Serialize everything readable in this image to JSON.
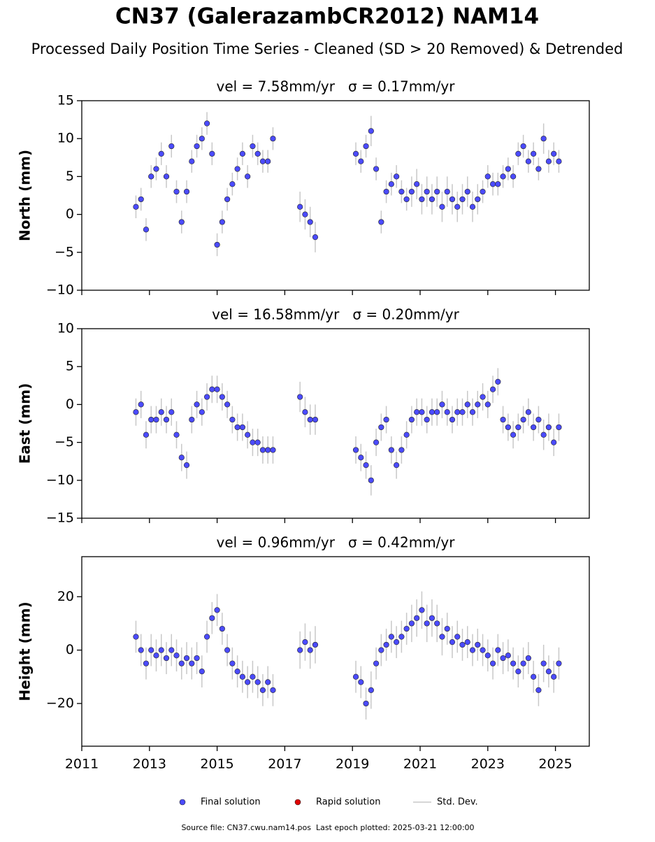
{
  "title": "CN37 (GalerazambCR2012) NAM14",
  "subtitle": "Processed Daily Position Time Series - Cleaned (SD > 20 Removed) & Detrended",
  "legend": [
    {
      "name": "Final solution",
      "color": "#4b4bff"
    },
    {
      "name": "Rapid solution",
      "color": "#e00000"
    },
    {
      "name": "Std. Dev.",
      "color": "#c8c8c8"
    }
  ],
  "footer": "Source file: CN37.cwu.nam14.pos  Last epoch plotted: 2025-03-21 12:00:00",
  "chart_data": [
    {
      "type": "scatter",
      "title": "vel = 7.58mm/yr   σ = 0.17mm/yr",
      "ylabel": "North (mm)",
      "xlim": [
        2011,
        2026
      ],
      "xticks": [
        2011,
        2013,
        2015,
        2017,
        2019,
        2021,
        2023,
        2025
      ],
      "xtick_labels": false,
      "ylim": [
        -10,
        15
      ],
      "yticks": [
        {
          "value": -10,
          "label": "−10"
        },
        {
          "value": -5,
          "label": "−5"
        },
        0,
        5,
        10,
        15
      ],
      "x": [
        2012.6,
        2012.75,
        2012.9,
        2013.05,
        2013.2,
        2013.35,
        2013.5,
        2013.65,
        2013.8,
        2013.95,
        2014.1,
        2014.25,
        2014.4,
        2014.55,
        2014.7,
        2014.85,
        2015.0,
        2015.15,
        2015.3,
        2015.45,
        2015.6,
        2015.75,
        2015.9,
        2016.05,
        2016.2,
        2016.35,
        2016.5,
        2016.65,
        2017.45,
        2017.6,
        2017.75,
        2017.9,
        2019.1,
        2019.25,
        2019.4,
        2019.55,
        2019.7,
        2019.85,
        2020.0,
        2020.15,
        2020.3,
        2020.45,
        2020.6,
        2020.75,
        2020.9,
        2021.05,
        2021.2,
        2021.35,
        2021.5,
        2021.65,
        2021.8,
        2021.95,
        2022.1,
        2022.25,
        2022.4,
        2022.55,
        2022.7,
        2022.85,
        2023.0,
        2023.15,
        2023.3,
        2023.45,
        2023.6,
        2023.75,
        2023.9,
        2024.05,
        2024.2,
        2024.35,
        2024.5,
        2024.65,
        2024.8,
        2024.95,
        2025.1
      ],
      "series": [
        {
          "name": "Final solution",
          "color": "#4b4bff",
          "values": [
            1,
            2,
            -2,
            5,
            6,
            8,
            5,
            9,
            3,
            -1,
            3,
            7,
            9,
            10,
            12,
            8,
            -4,
            -1,
            2,
            4,
            6,
            8,
            5,
            9,
            8,
            7,
            7,
            10,
            1,
            0,
            -1,
            -3,
            8,
            7,
            9,
            11,
            6,
            -1,
            3,
            4,
            5,
            3,
            2,
            3,
            4,
            2,
            3,
            2,
            3,
            1,
            3,
            2,
            1,
            2,
            3,
            1,
            2,
            3,
            5,
            4,
            4,
            5,
            6,
            5,
            8,
            9,
            7,
            8,
            6,
            10,
            7,
            8,
            7
          ],
          "errors": [
            1.5,
            1.5,
            1.5,
            1.5,
            1.5,
            1.5,
            1.5,
            1.5,
            1.5,
            1.5,
            1.5,
            1.5,
            1.5,
            1.5,
            1.5,
            1.5,
            1.5,
            1.5,
            1.5,
            1.5,
            1.5,
            1.5,
            1.5,
            1.5,
            1.5,
            1.5,
            1.5,
            1.5,
            2,
            2,
            2,
            2,
            1.5,
            1.5,
            1.5,
            2,
            1.5,
            1.5,
            1.5,
            1.5,
            1.5,
            1.5,
            1.5,
            2,
            2,
            2,
            2,
            2,
            2,
            2,
            2,
            2,
            2,
            2,
            2,
            2,
            2,
            1.5,
            1.5,
            1.5,
            1.5,
            1.5,
            1.5,
            1.5,
            1.5,
            1.5,
            1.5,
            1.5,
            1.5,
            2,
            1.5,
            1.5,
            1.5
          ]
        }
      ]
    },
    {
      "type": "scatter",
      "title": "vel = 16.58mm/yr   σ = 0.20mm/yr",
      "ylabel": "East (mm)",
      "xlim": [
        2011,
        2026
      ],
      "xticks": [
        2011,
        2013,
        2015,
        2017,
        2019,
        2021,
        2023,
        2025
      ],
      "xtick_labels": false,
      "ylim": [
        -15,
        10
      ],
      "yticks": [
        {
          "value": -15,
          "label": "−15"
        },
        {
          "value": -10,
          "label": "−10"
        },
        {
          "value": -5,
          "label": "−5"
        },
        0,
        5,
        10
      ],
      "x": [
        2012.6,
        2012.75,
        2012.9,
        2013.05,
        2013.2,
        2013.35,
        2013.5,
        2013.65,
        2013.8,
        2013.95,
        2014.1,
        2014.25,
        2014.4,
        2014.55,
        2014.7,
        2014.85,
        2015.0,
        2015.15,
        2015.3,
        2015.45,
        2015.6,
        2015.75,
        2015.9,
        2016.05,
        2016.2,
        2016.35,
        2016.5,
        2016.65,
        2017.45,
        2017.6,
        2017.75,
        2017.9,
        2019.1,
        2019.25,
        2019.4,
        2019.55,
        2019.7,
        2019.85,
        2020.0,
        2020.15,
        2020.3,
        2020.45,
        2020.6,
        2020.75,
        2020.9,
        2021.05,
        2021.2,
        2021.35,
        2021.5,
        2021.65,
        2021.8,
        2021.95,
        2022.1,
        2022.25,
        2022.4,
        2022.55,
        2022.7,
        2022.85,
        2023.0,
        2023.15,
        2023.3,
        2023.45,
        2023.6,
        2023.75,
        2023.9,
        2024.05,
        2024.2,
        2024.35,
        2024.5,
        2024.65,
        2024.8,
        2024.95,
        2025.1
      ],
      "series": [
        {
          "name": "Final solution",
          "color": "#4b4bff",
          "values": [
            -1,
            0,
            -4,
            -2,
            -2,
            -1,
            -2,
            -1,
            -4,
            -7,
            -8,
            -2,
            0,
            -1,
            1,
            2,
            2,
            1,
            0,
            -2,
            -3,
            -3,
            -4,
            -5,
            -5,
            -6,
            -6,
            -6,
            1,
            -1,
            -2,
            -2,
            -6,
            -7,
            -8,
            -10,
            -5,
            -3,
            -2,
            -6,
            -8,
            -6,
            -4,
            -2,
            -1,
            -1,
            -2,
            -1,
            -1,
            0,
            -1,
            -2,
            -1,
            -1,
            0,
            -1,
            0,
            1,
            0,
            2,
            3,
            -2,
            -3,
            -4,
            -3,
            -2,
            -1,
            -3,
            -2,
            -4,
            -3,
            -5,
            -3
          ],
          "errors": [
            1.8,
            1.8,
            1.8,
            1.8,
            1.8,
            1.8,
            1.8,
            1.8,
            1.8,
            1.8,
            1.8,
            1.8,
            1.8,
            1.8,
            1.8,
            1.8,
            1.8,
            1.8,
            1.8,
            1.8,
            1.8,
            1.8,
            1.8,
            1.8,
            1.8,
            1.8,
            1.8,
            1.8,
            2,
            2,
            2,
            2,
            1.8,
            1.8,
            1.8,
            2,
            1.8,
            1.8,
            1.8,
            1.8,
            1.8,
            1.8,
            1.8,
            1.8,
            1.8,
            1.8,
            1.8,
            1.8,
            1.8,
            1.8,
            1.8,
            1.8,
            1.8,
            1.8,
            1.8,
            1.8,
            1.8,
            1.8,
            1.8,
            1.8,
            1.8,
            1.8,
            1.8,
            1.8,
            1.8,
            1.8,
            1.8,
            1.8,
            1.8,
            2,
            1.8,
            1.8,
            1.8
          ]
        }
      ]
    },
    {
      "type": "scatter",
      "title": "vel = 0.96mm/yr   σ = 0.42mm/yr",
      "ylabel": "Height (mm)",
      "xlim": [
        2011,
        2026
      ],
      "xticks": [
        2011,
        2013,
        2015,
        2017,
        2019,
        2021,
        2023,
        2025
      ],
      "xtick_labels": true,
      "ylim": [
        -36,
        35
      ],
      "yticks": [
        {
          "value": -20,
          "label": "−20"
        },
        0,
        20
      ],
      "x": [
        2012.6,
        2012.75,
        2012.9,
        2013.05,
        2013.2,
        2013.35,
        2013.5,
        2013.65,
        2013.8,
        2013.95,
        2014.1,
        2014.25,
        2014.4,
        2014.55,
        2014.7,
        2014.85,
        2015.0,
        2015.15,
        2015.3,
        2015.45,
        2015.6,
        2015.75,
        2015.9,
        2016.05,
        2016.2,
        2016.35,
        2016.5,
        2016.65,
        2017.45,
        2017.6,
        2017.75,
        2017.9,
        2019.1,
        2019.25,
        2019.4,
        2019.55,
        2019.7,
        2019.85,
        2020.0,
        2020.15,
        2020.3,
        2020.45,
        2020.6,
        2020.75,
        2020.9,
        2021.05,
        2021.2,
        2021.35,
        2021.5,
        2021.65,
        2021.8,
        2021.95,
        2022.1,
        2022.25,
        2022.4,
        2022.55,
        2022.7,
        2022.85,
        2023.0,
        2023.15,
        2023.3,
        2023.45,
        2023.6,
        2023.75,
        2023.9,
        2024.05,
        2024.2,
        2024.35,
        2024.5,
        2024.65,
        2024.8,
        2024.95,
        2025.1
      ],
      "series": [
        {
          "name": "Final solution",
          "color": "#4b4bff",
          "values": [
            5,
            0,
            -5,
            0,
            -2,
            0,
            -3,
            0,
            -2,
            -5,
            -3,
            -5,
            -3,
            -8,
            5,
            12,
            15,
            8,
            0,
            -5,
            -8,
            -10,
            -12,
            -10,
            -12,
            -15,
            -12,
            -15,
            0,
            3,
            0,
            2,
            -10,
            -12,
            -20,
            -15,
            -5,
            0,
            2,
            5,
            3,
            5,
            8,
            10,
            12,
            15,
            10,
            12,
            10,
            5,
            8,
            3,
            5,
            2,
            3,
            0,
            2,
            0,
            -2,
            -5,
            0,
            -3,
            -2,
            -5,
            -8,
            -5,
            -3,
            -10,
            -15,
            -5,
            -8,
            -10,
            -5
          ],
          "errors": [
            6,
            6,
            6,
            6,
            6,
            6,
            6,
            6,
            6,
            6,
            6,
            6,
            6,
            6,
            6,
            6,
            6,
            6,
            6,
            6,
            6,
            6,
            6,
            6,
            6,
            6,
            6,
            6,
            7,
            7,
            7,
            7,
            6,
            6,
            6,
            7,
            6,
            6,
            6,
            6,
            6,
            6,
            6,
            7,
            7,
            7,
            7,
            7,
            7,
            7,
            6,
            6,
            6,
            6,
            6,
            6,
            6,
            6,
            6,
            6,
            6,
            6,
            6,
            6,
            6,
            6,
            6,
            6,
            6,
            7,
            6,
            6,
            6
          ]
        }
      ]
    }
  ]
}
